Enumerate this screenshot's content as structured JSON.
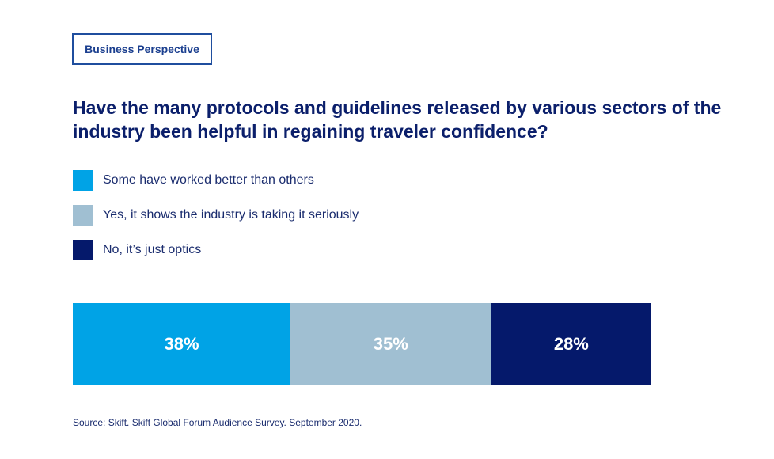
{
  "badge": {
    "label": "Business Perspective"
  },
  "title": "Have the many protocols and guidelines released by various sectors of the industry been helpful in regaining traveler confidence?",
  "source": "Source: Skift. Skift Global Forum Audience Survey. September 2020.",
  "colors": {
    "some": "#00a3e6",
    "yes": "#a0bfd2",
    "no": "#05196b"
  },
  "chart_data": {
    "type": "bar",
    "orientation": "horizontal",
    "stacked": true,
    "legend_position": "top-left",
    "grid": false,
    "series": [
      {
        "name": "Some have worked better than others",
        "value": 38,
        "label": "38%",
        "color": "#00a3e6"
      },
      {
        "name": "Yes, it shows the industry is taking it seriously",
        "value": 35,
        "label": "35%",
        "color": "#a0bfd2"
      },
      {
        "name": "No, it’s just optics",
        "value": 28,
        "label": "28%",
        "color": "#05196b"
      }
    ]
  }
}
